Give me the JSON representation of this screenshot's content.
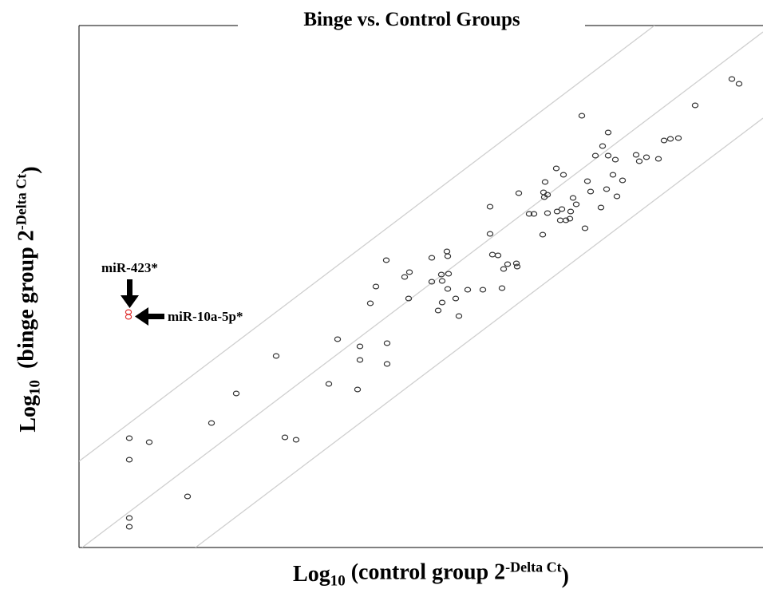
{
  "chart_data": {
    "type": "scatter",
    "title": "Binge vs. Control Groups",
    "x_label": [
      "Log",
      "10",
      " (control group 2",
      "-Delta Ct",
      ")"
    ],
    "y_label": [
      "Log",
      "10",
      "  (binge group 2",
      "-Delta Ct",
      ")"
    ],
    "xlim": [
      0,
      857
    ],
    "ylim": [
      0,
      654
    ],
    "series": [
      {
        "color": "#333333",
        "x": [
          63,
          88,
          63,
          63,
          63,
          136,
          166,
          197,
          247,
          258,
          272,
          313,
          324,
          349,
          352,
          352,
          365,
          372,
          385,
          386,
          386,
          408,
          414,
          413,
          442,
          442,
          450,
          454,
          455,
          455,
          461,
          462,
          462,
          463,
          472,
          476,
          487,
          506,
          515,
          515,
          518,
          525,
          530,
          532,
          537,
          548,
          549,
          551,
          564,
          570,
          581,
          582,
          583,
          584,
          587,
          587,
          598,
          599,
          603,
          605,
          607,
          610,
          615,
          616,
          619,
          623,
          630,
          634,
          637,
          641,
          647,
          654,
          656,
          661,
          663,
          663,
          669,
          672,
          674,
          681,
          698,
          702,
          711,
          726,
          733,
          741,
          751,
          772,
          818,
          827
        ],
        "values": [
          137,
          132,
          110,
          37,
          26,
          64,
          156,
          193,
          240,
          138,
          135,
          205,
          261,
          198,
          252,
          235,
          306,
          327,
          360,
          256,
          230,
          339,
          345,
          312,
          363,
          333,
          297,
          342,
          307,
          334,
          371,
          365,
          324,
          343,
          312,
          290,
          323,
          323,
          427,
          393,
          367,
          366,
          325,
          349,
          355,
          356,
          352,
          444,
          418,
          418,
          392,
          445,
          439,
          458,
          442,
          419,
          475,
          421,
          410,
          424,
          467,
          410,
          412,
          421,
          438,
          430,
          541,
          400,
          459,
          446,
          491,
          426,
          503,
          449,
          520,
          491,
          467,
          486,
          440,
          460,
          492,
          484,
          489,
          487,
          510,
          512,
          513,
          554,
          587,
          581
        ]
      },
      {
        "color": "#e03030",
        "x": [
          62,
          62
        ],
        "values": [
          295,
          289
        ]
      }
    ],
    "annotations": [
      "miR-423*",
      "miR-10a-5p*"
    ]
  }
}
